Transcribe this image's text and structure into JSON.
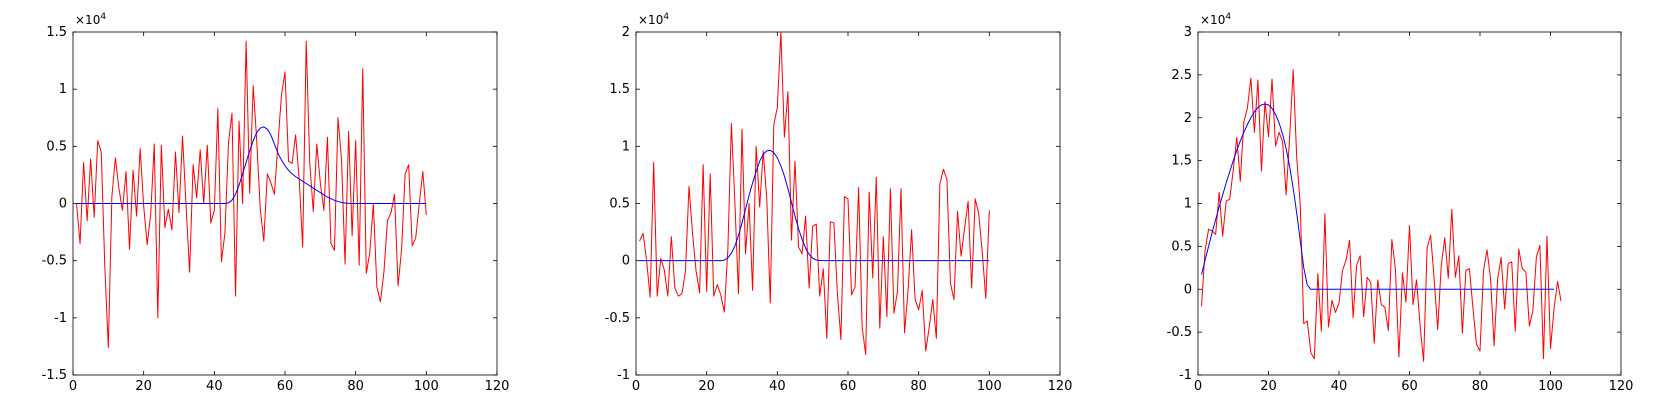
{
  "chart_data": [
    {
      "type": "line",
      "xlim": [
        0,
        120
      ],
      "ylim": [
        -15000,
        15000
      ],
      "xticks": [
        0,
        20,
        40,
        60,
        80,
        100,
        120
      ],
      "yticks": [
        -15000,
        -10000,
        -5000,
        0,
        5000,
        10000,
        15000
      ],
      "ytick_labels": [
        "-1.5",
        "-1",
        "-0.5",
        "0",
        "0.5",
        "1",
        "1.5"
      ],
      "y_multiplier": {
        "base": "×10",
        "exponent": "4"
      },
      "grid": false,
      "series": [
        {
          "color": "#ff0000",
          "x_start": 1,
          "x_step": 1,
          "values": [
            0,
            -3500,
            3600,
            -1500,
            3900,
            -1200,
            5500,
            4500,
            -5500,
            -12600,
            600,
            4000,
            1300,
            -600,
            2800,
            -4000,
            2900,
            -1100,
            4800,
            -200,
            -3600,
            -900,
            5200,
            -10000,
            5100,
            -2100,
            -500,
            -2300,
            4500,
            -800,
            5900,
            -200,
            -6000,
            3400,
            500,
            4700,
            0,
            5100,
            -1700,
            -600,
            8300,
            -5100,
            -2600,
            5300,
            7900,
            -8100,
            7200,
            0,
            14200,
            900,
            10300,
            5500,
            -500,
            -3300,
            2600,
            1800,
            800,
            5200,
            9500,
            11500,
            3700,
            3500,
            6000,
            2200,
            -3800,
            14200,
            3600,
            -700,
            5200,
            1800,
            -600,
            5800,
            -3500,
            -4100,
            7500,
            3800,
            -5300,
            6300,
            -2800,
            5500,
            -5400,
            11800,
            -6100,
            -4300,
            0,
            -7300,
            -8600,
            -6000,
            -1500,
            -800,
            800,
            -7200,
            -4000,
            2600,
            3400,
            -3700,
            -3000,
            0,
            2800,
            -1000
          ],
          "x_end_last": 101
        },
        {
          "color": "#0000ff",
          "x_start": 1,
          "x_step": 1,
          "values": [
            0,
            0,
            0,
            0,
            0,
            0,
            0,
            0,
            0,
            0,
            0,
            0,
            0,
            0,
            0,
            0,
            0,
            0,
            0,
            0,
            0,
            0,
            0,
            0,
            0,
            0,
            0,
            0,
            0,
            0,
            0,
            0,
            0,
            0,
            0,
            0,
            0,
            0,
            0,
            0,
            0,
            0,
            0,
            50,
            300,
            800,
            1600,
            2600,
            3600,
            4600,
            5500,
            6200,
            6600,
            6700,
            6500,
            6000,
            5200,
            4400,
            3800,
            3300,
            2900,
            2600,
            2350,
            2150,
            1950,
            1750,
            1550,
            1350,
            1150,
            950,
            750,
            570,
            420,
            280,
            170,
            90,
            40,
            10,
            0,
            0,
            0,
            0,
            0,
            0,
            0,
            0,
            0,
            0,
            0,
            0,
            0,
            0,
            0,
            0,
            0,
            0,
            0,
            0,
            0,
            0
          ]
        }
      ]
    },
    {
      "type": "line",
      "xlim": [
        0,
        120
      ],
      "ylim": [
        -10000,
        20000
      ],
      "xticks": [
        0,
        20,
        40,
        60,
        80,
        100,
        120
      ],
      "yticks": [
        -10000,
        -5000,
        0,
        5000,
        10000,
        15000,
        20000
      ],
      "ytick_labels": [
        "-1",
        "-0.5",
        "0",
        "0.5",
        "1",
        "1.5",
        "2"
      ],
      "y_multiplier": {
        "base": "×10",
        "exponent": "4"
      },
      "grid": false,
      "series": [
        {
          "color": "#ff0000",
          "x_start": 1,
          "x_step": 1,
          "values": [
            1700,
            2400,
            0,
            -3200,
            8600,
            -3100,
            200,
            -800,
            -3100,
            2100,
            -2400,
            -3100,
            -2900,
            -900,
            6500,
            2400,
            -900,
            -2800,
            8400,
            -2700,
            7600,
            -3100,
            -2100,
            -3000,
            -4500,
            1000,
            12000,
            5000,
            -2900,
            11500,
            600,
            5000,
            -2600,
            10000,
            4700,
            9600,
            5500,
            -3700,
            11900,
            13400,
            20000,
            10800,
            14800,
            1800,
            8700,
            1200,
            600,
            3900,
            -2400,
            3000,
            3200,
            -3100,
            -700,
            -6800,
            3400,
            3300,
            -2900,
            -6900,
            5600,
            5400,
            -3000,
            -2300,
            6400,
            -5800,
            -8200,
            6000,
            -1500,
            7300,
            -5900,
            2100,
            -4900,
            6300,
            -4600,
            -2700,
            6300,
            -6300,
            -2600,
            2700,
            -3400,
            -4300,
            -2600,
            -7900,
            -5800,
            -3400,
            -6800,
            6700,
            8000,
            7100,
            -2000,
            -3400,
            4300,
            400,
            2800,
            5200,
            -2400,
            5400,
            4100,
            700,
            -3300,
            4400
          ],
          "x_end_last": 101
        },
        {
          "color": "#0000ff",
          "x_start": 1,
          "x_step": 1,
          "values": [
            0,
            0,
            0,
            0,
            0,
            0,
            0,
            0,
            0,
            0,
            0,
            0,
            0,
            0,
            0,
            0,
            0,
            0,
            0,
            0,
            0,
            0,
            0,
            0,
            50,
            250,
            650,
            1300,
            2200,
            3300,
            4500,
            5700,
            6800,
            7800,
            8700,
            9300,
            9600,
            9650,
            9450,
            9000,
            8300,
            7400,
            6300,
            5100,
            3900,
            2800,
            1850,
            1100,
            550,
            220,
            60,
            10,
            0,
            0,
            0,
            0,
            0,
            0,
            0,
            0,
            0,
            0,
            0,
            0,
            0,
            0,
            0,
            0,
            0,
            0,
            0,
            0,
            0,
            0,
            0,
            0,
            0,
            0,
            0,
            0,
            0,
            0,
            0,
            0,
            0,
            0,
            0,
            0,
            0,
            0,
            0,
            0,
            0,
            0,
            0,
            0,
            0,
            0,
            0,
            0
          ]
        }
      ]
    },
    {
      "type": "line",
      "xlim": [
        0,
        120
      ],
      "ylim": [
        -10000,
        30000
      ],
      "xticks": [
        0,
        20,
        40,
        60,
        80,
        100,
        120
      ],
      "yticks": [
        -10000,
        -5000,
        0,
        5000,
        10000,
        15000,
        20000,
        25000,
        30000
      ],
      "ytick_labels": [
        "-1",
        "-0.5",
        "0",
        "0.5",
        "1",
        "1.5",
        "2",
        "2.5",
        "3"
      ],
      "y_multiplier": {
        "base": "×10",
        "exponent": "4"
      },
      "grid": false,
      "series": [
        {
          "color": "#ff0000",
          "x_start": 1,
          "x_step": 1,
          "values": [
            -2000,
            4500,
            7000,
            6800,
            6400,
            11300,
            6200,
            10300,
            10500,
            13900,
            17700,
            12600,
            19500,
            21100,
            24600,
            18300,
            24400,
            13800,
            21900,
            17800,
            24500,
            16700,
            18300,
            17200,
            11000,
            17800,
            25600,
            15400,
            9900,
            -4000,
            -3700,
            -7400,
            -8100,
            1800,
            -4900,
            8800,
            -4400,
            -1300,
            -2700,
            -1600,
            2200,
            3400,
            5700,
            -3300,
            2800,
            3900,
            -3200,
            1400,
            800,
            -6300,
            1100,
            -1800,
            -2100,
            -4800,
            5800,
            2400,
            -7900,
            1900,
            -1500,
            7400,
            -1800,
            1100,
            -4200,
            -8400,
            4900,
            6300,
            1200,
            -4700,
            2700,
            6000,
            1300,
            9300,
            1400,
            3900,
            -5100,
            2200,
            2400,
            -2200,
            -6400,
            -7200,
            2200,
            4600,
            1200,
            -6600,
            1200,
            3700,
            -2300,
            3000,
            3200,
            -4900,
            4700,
            2400,
            2000,
            -4300,
            -2500,
            3800,
            5100,
            -8100,
            6200,
            -6900,
            -2300,
            900,
            -1400
          ],
          "x_end_last": 101
        },
        {
          "color": "#0000ff",
          "x_start": 1,
          "x_step": 1,
          "values": [
            1700,
            3400,
            5000,
            6600,
            8100,
            9600,
            11000,
            12400,
            13700,
            15000,
            16200,
            17300,
            18300,
            19200,
            20000,
            20700,
            21200,
            21500,
            21600,
            21500,
            21100,
            20400,
            19400,
            18100,
            16400,
            14300,
            11800,
            8900,
            5700,
            2500,
            500,
            0,
            0,
            0,
            0,
            0,
            0,
            0,
            0,
            0,
            0,
            0,
            0,
            0,
            0,
            0,
            0,
            0,
            0,
            0,
            0,
            0,
            0,
            0,
            0,
            0,
            0,
            0,
            0,
            0,
            0,
            0,
            0,
            0,
            0,
            0,
            0,
            0,
            0,
            0,
            0,
            0,
            0,
            0,
            0,
            0,
            0,
            0,
            0,
            0,
            0,
            0,
            0,
            0,
            0,
            0,
            0,
            0,
            0,
            0,
            0,
            0,
            0,
            0,
            0,
            0,
            0,
            0,
            0,
            0,
            0
          ]
        }
      ]
    }
  ]
}
